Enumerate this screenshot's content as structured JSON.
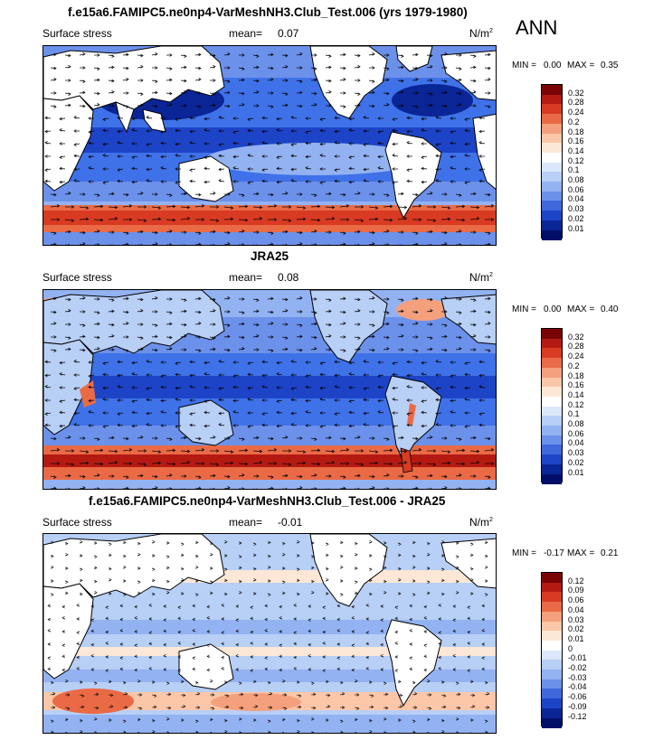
{
  "season": "ANN",
  "colors": {
    "ocean": "#3f72e8",
    "land": "#ffffff",
    "pos_scale": [
      "#fde7d6",
      "#fbc7a8",
      "#f5a07d",
      "#ea6a46",
      "#d83a22",
      "#b51a12",
      "#7a0404"
    ],
    "neg_scale": [
      "#dbe8fb",
      "#b8cff6",
      "#93b2f1",
      "#6c91ea",
      "#3f68dc",
      "#1d44c7",
      "#0a2596",
      "#000e68"
    ]
  },
  "panels": [
    {
      "title": "f.e15a6.FAMIPC5.ne0np4-VarMeshNH3.Club_Test.006 (yrs 1979-1980)",
      "variable": "Surface stress",
      "mean_label": "mean=",
      "mean": "0.07",
      "units": "N/m",
      "units_exp": "2",
      "min_label": "MIN =",
      "min": "0.00",
      "max_label": "MAX =",
      "max": "0.35",
      "levels": [
        "0.32",
        "0.28",
        "0.24",
        "0.2",
        "0.18",
        "0.16",
        "0.14",
        "0.12",
        "0.1",
        "0.08",
        "0.06",
        "0.04",
        "0.03",
        "0.02",
        "0.01"
      ]
    },
    {
      "title": "JRA25",
      "variable": "Surface stress",
      "mean_label": "mean=",
      "mean": "0.08",
      "units": "N/m",
      "units_exp": "2",
      "min_label": "MIN =",
      "min": "0.00",
      "max_label": "MAX =",
      "max": "0.40",
      "levels": [
        "0.32",
        "0.28",
        "0.24",
        "0.2",
        "0.18",
        "0.16",
        "0.14",
        "0.12",
        "0.1",
        "0.08",
        "0.06",
        "0.04",
        "0.03",
        "0.02",
        "0.01"
      ]
    },
    {
      "title": "f.e15a6.FAMIPC5.ne0np4-VarMeshNH3.Club_Test.006 - JRA25",
      "variable": "Surface stress",
      "mean_label": "mean=",
      "mean": "-0.01",
      "units": "N/m",
      "units_exp": "2",
      "min_label": "MIN =",
      "min": "-0.17",
      "max_label": "MAX =",
      "max": "0.21",
      "levels": [
        "0.12",
        "0.09",
        "0.06",
        "0.04",
        "0.03",
        "0.02",
        "0.01",
        "0",
        "-0.01",
        "-0.02",
        "-0.03",
        "-0.04",
        "-0.06",
        "-0.09",
        "-0.12"
      ]
    }
  ]
}
